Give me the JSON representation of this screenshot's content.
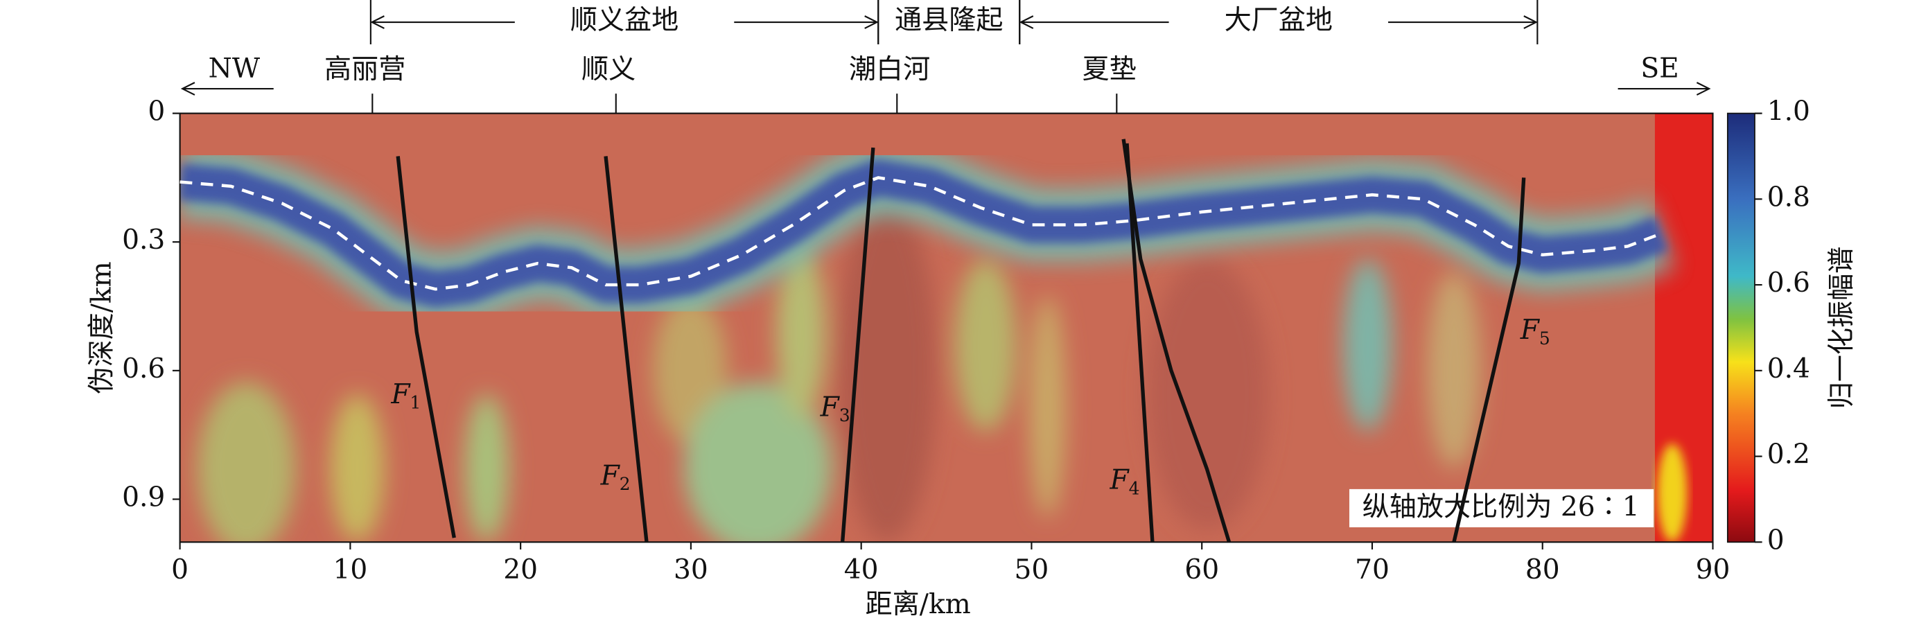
{
  "chart_data": {
    "type": "heatmap-section",
    "xlabel": "距离/km",
    "ylabel": "伪深度/km",
    "colorbar_label": "归一化振幅谱",
    "xlim": [
      0,
      90
    ],
    "xticks": [
      0,
      10,
      20,
      30,
      40,
      50,
      60,
      70,
      80,
      90
    ],
    "ylim": [
      0,
      1
    ],
    "yticks": [
      0,
      0.3,
      0.6,
      0.9
    ],
    "y_inverted": true,
    "clim": [
      0,
      1
    ],
    "cticks": [
      0,
      0.2,
      0.4,
      0.6,
      0.8,
      {
        "value": 1,
        "label": "1.0"
      }
    ],
    "left_direction": "NW",
    "right_direction": "SE",
    "top_labels": [
      {
        "label": "高丽营",
        "x": 11.3
      },
      {
        "label": "顺义",
        "x": 25.6
      },
      {
        "label": "潮白河",
        "x": 42.1
      },
      {
        "label": "夏垫",
        "x": 55.0
      }
    ],
    "regions": [
      {
        "label": "顺义盆地",
        "from": 11.2,
        "to": 41.0
      },
      {
        "label": "通县隆起",
        "from": 41.0,
        "to": 49.3
      },
      {
        "label": "大厂盆地",
        "from": 49.3,
        "to": 79.7
      }
    ],
    "annotation": "纵轴放大比例为 26∶1",
    "interface": {
      "color": "#ffffff",
      "x": [
        0,
        3,
        6,
        9,
        11,
        13,
        15,
        17,
        19,
        21,
        23,
        25,
        27,
        30,
        33,
        36,
        39,
        41,
        44,
        47,
        50,
        53,
        56,
        60,
        65,
        70,
        73,
        76,
        78,
        80,
        83,
        85,
        87
      ],
      "depth": [
        0.16,
        0.17,
        0.21,
        0.27,
        0.33,
        0.39,
        0.41,
        0.4,
        0.37,
        0.35,
        0.36,
        0.4,
        0.4,
        0.38,
        0.33,
        0.26,
        0.18,
        0.15,
        0.17,
        0.22,
        0.26,
        0.26,
        0.25,
        0.23,
        0.21,
        0.19,
        0.2,
        0.26,
        0.31,
        0.33,
        0.32,
        0.31,
        0.28
      ]
    },
    "faults": [
      {
        "letter": "F",
        "sub": "1",
        "x": [
          12.8,
          13.9,
          16.1
        ],
        "depth": [
          0.1,
          0.51,
          0.99
        ]
      },
      {
        "letter": "F",
        "sub": "2",
        "x": [
          25.0,
          27.4
        ],
        "depth": [
          0.1,
          1.0
        ]
      },
      {
        "letter": "F",
        "sub": "3",
        "x": [
          40.7,
          38.9
        ],
        "depth": [
          0.08,
          1.0
        ]
      },
      {
        "letter": "F",
        "sub": "4",
        "x": [
          55.4,
          56.4,
          58.2,
          60.3,
          61.6
        ],
        "depth": [
          0.06,
          0.34,
          0.6,
          0.83,
          1.0
        ]
      },
      {
        "x": [
          55.6,
          57.1
        ],
        "depth": [
          0.07,
          1.0
        ]
      },
      {
        "letter": "F",
        "sub": "5",
        "x": [
          78.9,
          78.6,
          74.8
        ],
        "depth": [
          0.15,
          0.35,
          1.0
        ]
      }
    ]
  }
}
